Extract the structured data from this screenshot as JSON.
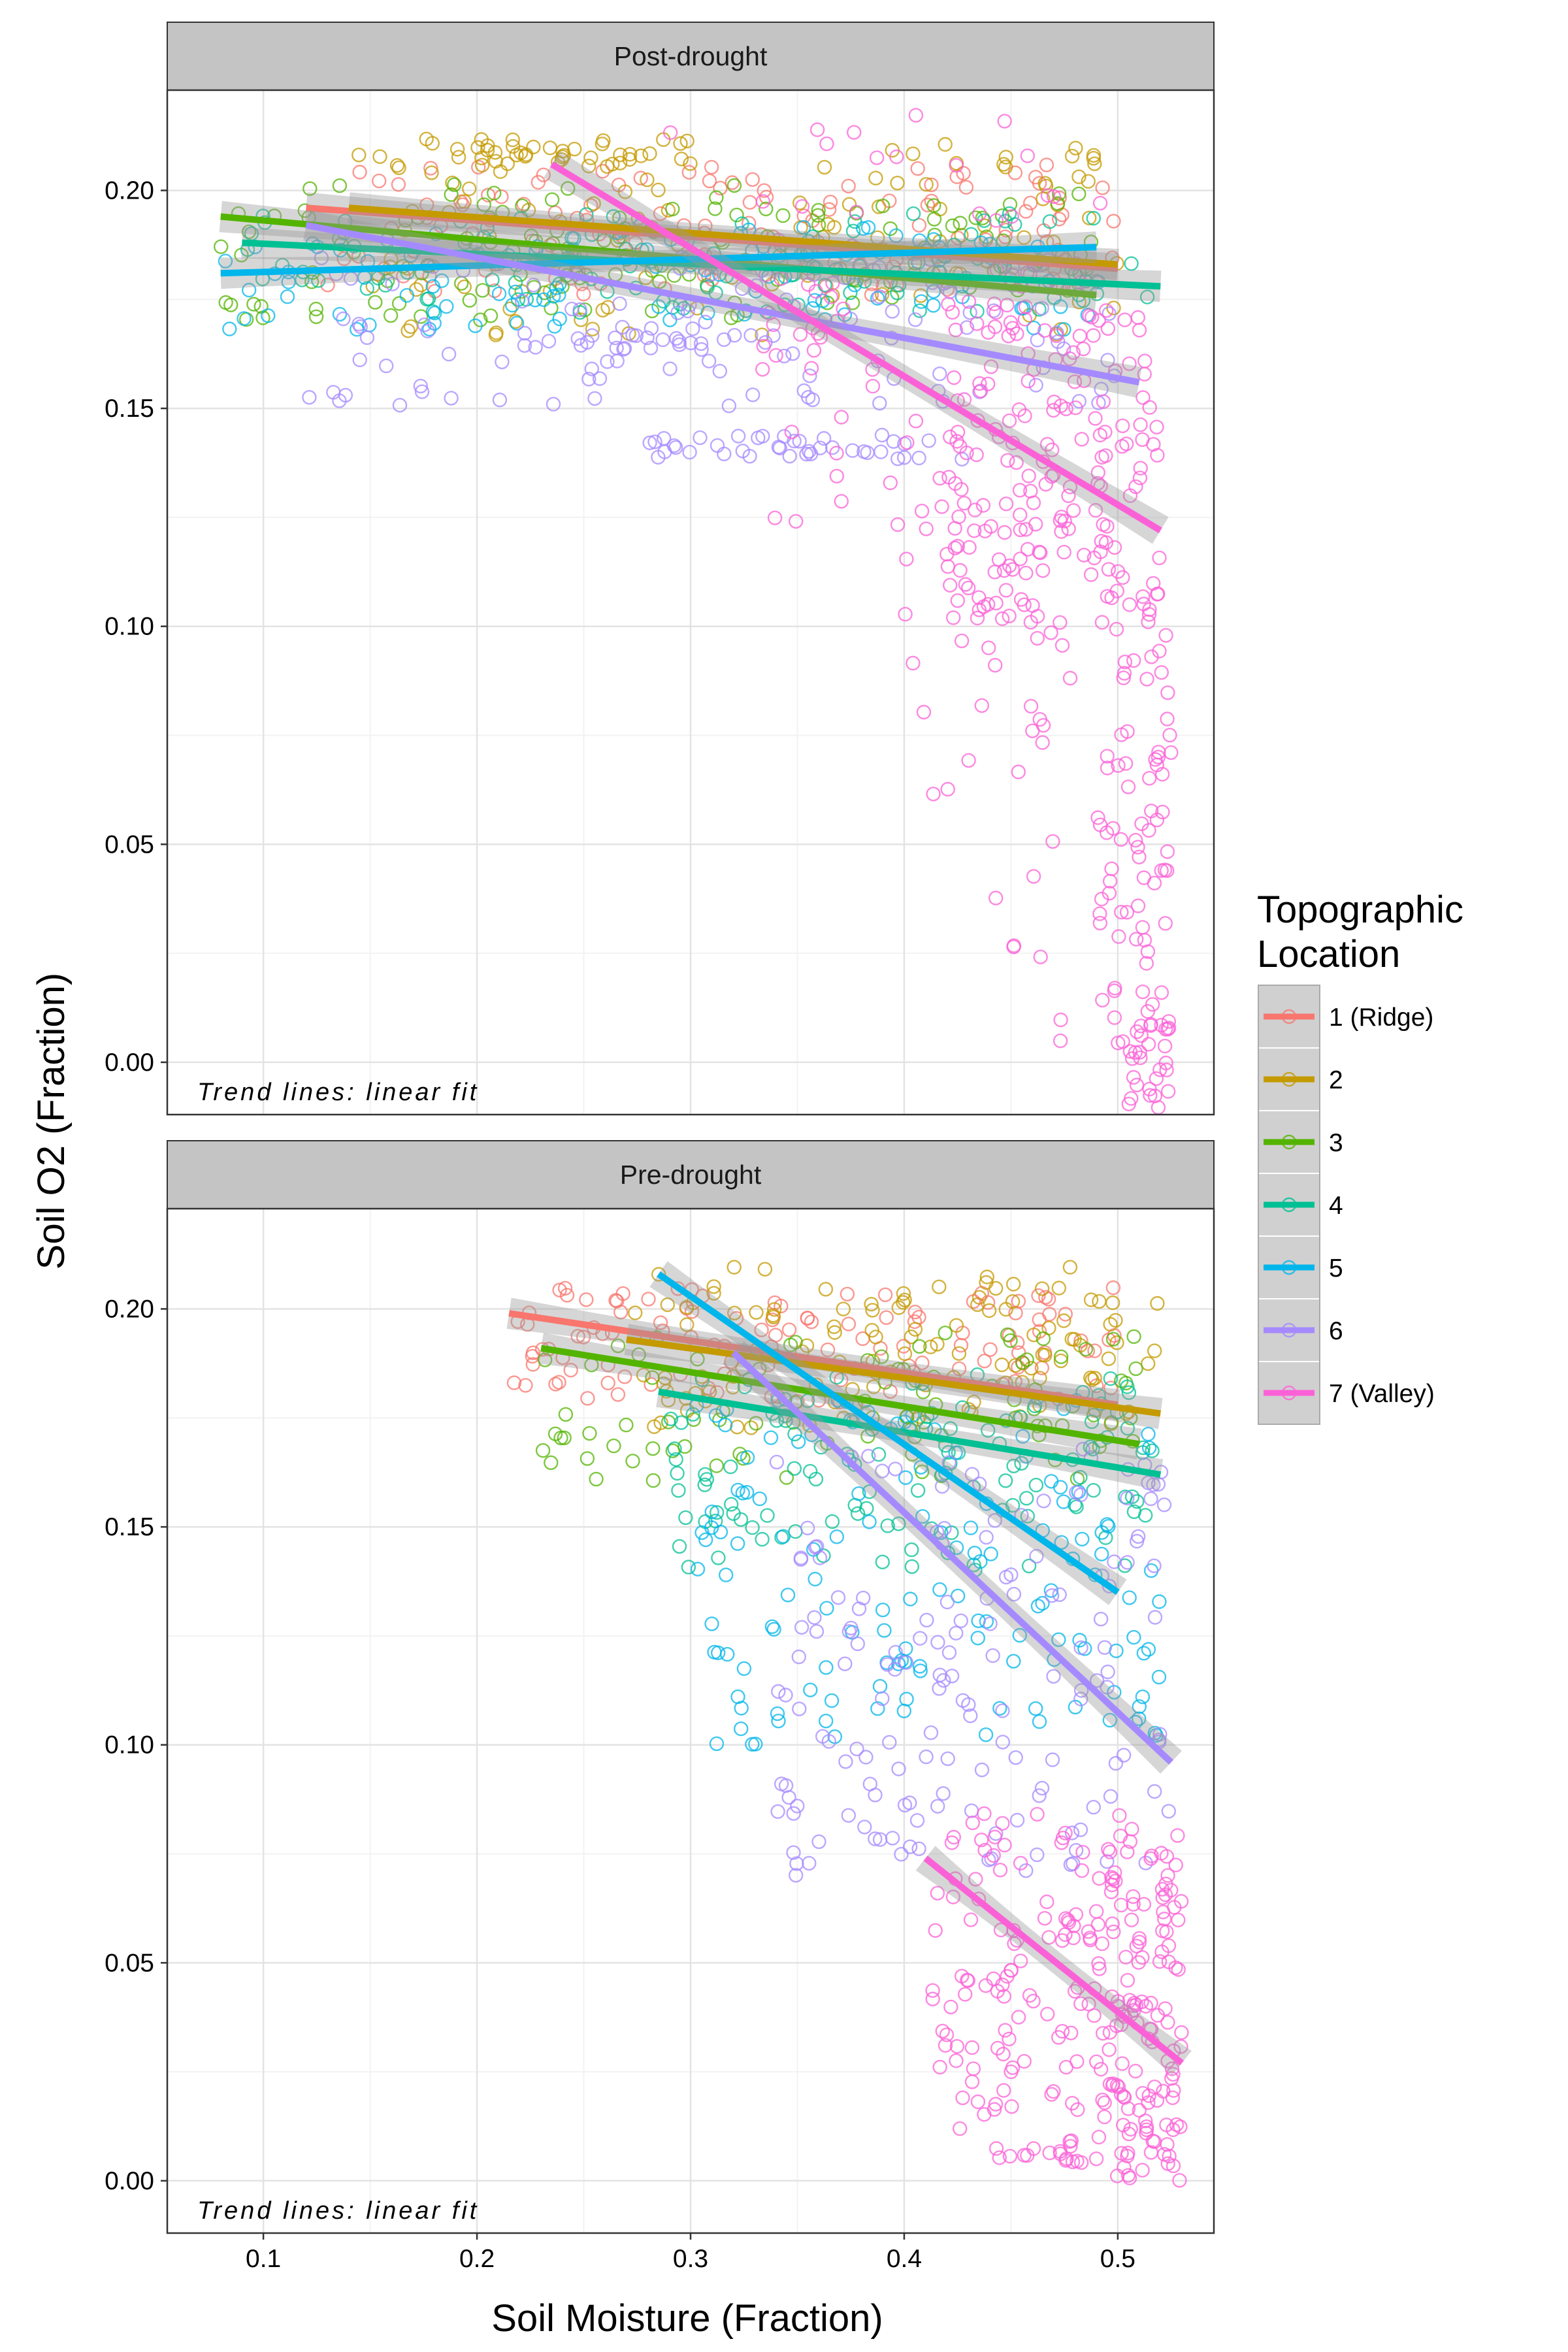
{
  "chart_data": {
    "type": "scatter",
    "xlabel": "Soil Moisture (Fraction)",
    "ylabel": "Soil O2 (Fraction)",
    "x_ticks": [
      "0.1",
      "0.2",
      "0.3",
      "0.4",
      "0.5"
    ],
    "y_ticks": [
      "0.00",
      "0.05",
      "0.10",
      "0.15",
      "0.20"
    ],
    "xlim": [
      0.055,
      0.545
    ],
    "ylim": [
      -0.012,
      0.223
    ],
    "grid": true,
    "legend": {
      "title_lines": [
        "Topographic",
        "Location"
      ],
      "placement": "right",
      "entries": [
        {
          "label": "1 (Ridge)",
          "color": "#F8766D"
        },
        {
          "label": "2",
          "color": "#C49A00"
        },
        {
          "label": "3",
          "color": "#53B400"
        },
        {
          "label": "4",
          "color": "#00C094"
        },
        {
          "label": "5",
          "color": "#00B6EB"
        },
        {
          "label": "6",
          "color": "#A58AFF"
        },
        {
          "label": "7 (Valley)",
          "color": "#FB61D7"
        }
      ]
    },
    "panels": [
      {
        "strip": "Post-drought",
        "annotation": "Trend lines: linear fit",
        "trend_lines": [
          {
            "series": "1 (Ridge)",
            "x": [
              0.12,
              0.5
            ],
            "y": [
              0.196,
              0.182
            ]
          },
          {
            "series": "2",
            "x": [
              0.14,
              0.5
            ],
            "y": [
              0.196,
              0.183
            ]
          },
          {
            "series": "3",
            "x": [
              0.08,
              0.49
            ],
            "y": [
              0.194,
              0.176
            ]
          },
          {
            "series": "4",
            "x": [
              0.09,
              0.52
            ],
            "y": [
              0.188,
              0.178
            ]
          },
          {
            "series": "5",
            "x": [
              0.08,
              0.49
            ],
            "y": [
              0.181,
              0.187
            ]
          },
          {
            "series": "6",
            "x": [
              0.12,
              0.51
            ],
            "y": [
              0.192,
              0.156
            ]
          },
          {
            "series": "7 (Valley)",
            "x": [
              0.235,
              0.52
            ],
            "y": [
              0.206,
              0.122
            ]
          }
        ],
        "point_clusters": [
          {
            "series": "1 (Ridge)",
            "x": [
              0.13,
              0.5
            ],
            "y": [
              0.176,
              0.206
            ],
            "n": 130
          },
          {
            "series": "2",
            "x": [
              0.15,
              0.5
            ],
            "y": [
              0.166,
              0.211
            ],
            "n": 120
          },
          {
            "series": "2",
            "x": [
              0.14,
              0.3
            ],
            "y": [
              0.205,
              0.212
            ],
            "n": 40
          },
          {
            "series": "3",
            "x": [
              0.08,
              0.49
            ],
            "y": [
              0.17,
              0.202
            ],
            "n": 140
          },
          {
            "series": "4",
            "x": [
              0.09,
              0.52
            ],
            "y": [
              0.172,
              0.195
            ],
            "n": 110
          },
          {
            "series": "5",
            "x": [
              0.08,
              0.5
            ],
            "y": [
              0.168,
              0.192
            ],
            "n": 110
          },
          {
            "series": "6",
            "x": [
              0.12,
              0.5
            ],
            "y": [
              0.15,
              0.185
            ],
            "n": 110
          },
          {
            "series": "6",
            "x": [
              0.28,
              0.43
            ],
            "y": [
              0.138,
              0.144
            ],
            "n": 40
          },
          {
            "series": "6",
            "x": [
              0.22,
              0.34
            ],
            "y": [
              0.163,
              0.167
            ],
            "n": 25
          },
          {
            "series": "7 (Valley)",
            "x": [
              0.33,
              0.52
            ],
            "y": [
              0.12,
              0.2
            ],
            "n": 90
          },
          {
            "series": "7 (Valley)",
            "x": [
              0.42,
              0.52
            ],
            "y": [
              0.1,
              0.175
            ],
            "n": 130
          },
          {
            "series": "7 (Valley)",
            "x": [
              0.4,
              0.48
            ],
            "y": [
              0.06,
              0.13
            ],
            "n": 40
          },
          {
            "series": "7 (Valley)",
            "x": [
              0.49,
              0.525
            ],
            "y": [
              0.0,
              0.12
            ],
            "n": 90
          },
          {
            "series": "7 (Valley)",
            "x": [
              0.505,
              0.525
            ],
            "y": [
              -0.011,
              0.01
            ],
            "n": 25
          },
          {
            "series": "7 (Valley)",
            "x": [
              0.43,
              0.49
            ],
            "y": [
              0.0,
              0.06
            ],
            "n": 8
          },
          {
            "series": "7 (Valley)",
            "x": [
              0.28,
              0.48
            ],
            "y": [
              0.205,
              0.218
            ],
            "n": 10
          }
        ]
      },
      {
        "strip": "Pre-drought",
        "annotation": "Trend lines: linear fit",
        "trend_lines": [
          {
            "series": "1 (Ridge)",
            "x": [
              0.215,
              0.5
            ],
            "y": [
              0.199,
              0.178
            ]
          },
          {
            "series": "2",
            "x": [
              0.27,
              0.52
            ],
            "y": [
              0.193,
              0.176
            ]
          },
          {
            "series": "3",
            "x": [
              0.23,
              0.51
            ],
            "y": [
              0.191,
              0.169
            ]
          },
          {
            "series": "4",
            "x": [
              0.285,
              0.52
            ],
            "y": [
              0.181,
              0.162
            ]
          },
          {
            "series": "5",
            "x": [
              0.285,
              0.5
            ],
            "y": [
              0.208,
              0.135
            ]
          },
          {
            "series": "6",
            "x": [
              0.32,
              0.525
            ],
            "y": [
              0.19,
              0.096
            ]
          },
          {
            "series": "7 (Valley)",
            "x": [
              0.41,
              0.53
            ],
            "y": [
              0.074,
              0.027
            ]
          }
        ],
        "point_clusters": [
          {
            "series": "1 (Ridge)",
            "x": [
              0.215,
              0.5
            ],
            "y": [
              0.178,
              0.205
            ],
            "n": 120
          },
          {
            "series": "2",
            "x": [
              0.27,
              0.52
            ],
            "y": [
              0.172,
              0.21
            ],
            "n": 120
          },
          {
            "series": "3",
            "x": [
              0.23,
              0.51
            ],
            "y": [
              0.16,
              0.195
            ],
            "n": 90
          },
          {
            "series": "3",
            "x": [
              0.23,
              0.26
            ],
            "y": [
              0.169,
              0.172
            ],
            "n": 2
          },
          {
            "series": "4",
            "x": [
              0.29,
              0.52
            ],
            "y": [
              0.14,
              0.185
            ],
            "n": 120
          },
          {
            "series": "5",
            "x": [
              0.3,
              0.52
            ],
            "y": [
              0.1,
              0.18
            ],
            "n": 140
          },
          {
            "series": "6",
            "x": [
              0.34,
              0.525
            ],
            "y": [
              0.07,
              0.17
            ],
            "n": 160
          },
          {
            "series": "7 (Valley)",
            "x": [
              0.41,
              0.53
            ],
            "y": [
              0.005,
              0.085
            ],
            "n": 150
          },
          {
            "series": "7 (Valley)",
            "x": [
              0.49,
              0.53
            ],
            "y": [
              0.0,
              0.08
            ],
            "n": 110
          },
          {
            "series": "7 (Valley)",
            "x": [
              0.47,
              0.49
            ],
            "y": [
              0.004,
              0.006
            ],
            "n": 6
          }
        ]
      }
    ]
  }
}
